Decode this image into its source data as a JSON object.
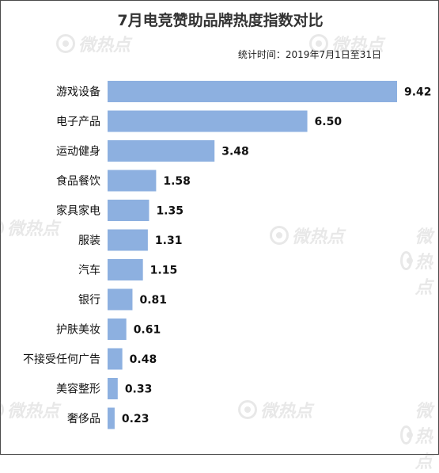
{
  "watermark": "微热点",
  "chart_data": {
    "type": "bar",
    "orientation": "horizontal",
    "title": "7月电竞赞助品牌热度指数对比",
    "subtitle": "统计时间：2019年7月1日至31日",
    "categories": [
      "游戏设备",
      "电子产品",
      "运动健身",
      "食品餐饮",
      "家具家电",
      "服装",
      "汽车",
      "银行",
      "护肤美妆",
      "不接受任何广告",
      "美容整形",
      "奢侈品"
    ],
    "values": [
      9.42,
      6.5,
      3.48,
      1.58,
      1.35,
      1.31,
      1.15,
      0.81,
      0.61,
      0.48,
      0.33,
      0.23
    ],
    "value_labels": [
      "9.42",
      "6.50",
      "3.48",
      "1.58",
      "1.35",
      "1.31",
      "1.15",
      "0.81",
      "0.61",
      "0.48",
      "0.33",
      "0.23"
    ],
    "xlim": [
      0,
      9.42
    ],
    "bar_color": "#8db0e0",
    "grid": false,
    "legend": "none"
  }
}
